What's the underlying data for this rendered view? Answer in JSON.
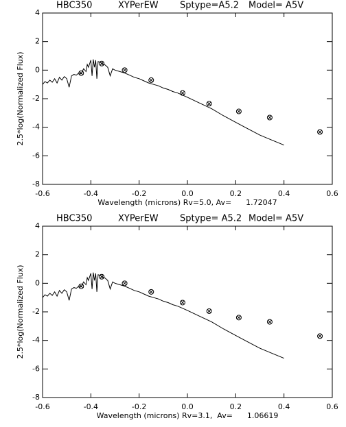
{
  "chart_data": [
    {
      "type": "line",
      "titles": [
        "HBC350",
        "XYPerEW",
        "Sptype=A5.2",
        "Model= A5V"
      ],
      "xlabel": "Wavelength (microns) Rv=5.0, Av=      1.72047",
      "ylabel": "2.5*log(Normalized Flux)",
      "xlim": [
        -0.6,
        0.6
      ],
      "ylim": [
        -8,
        4
      ],
      "xticks": [
        -0.6,
        -0.4,
        -0.2,
        {
          "value": 0,
          "label": "0.0"
        },
        0.2,
        0.4,
        0.6
      ],
      "yticks": [
        -8,
        -6,
        -4,
        -2,
        0,
        2,
        4
      ],
      "series": [
        {
          "style": "line",
          "color": "#000000",
          "x": [
            -0.6,
            -0.59,
            -0.58,
            -0.57,
            -0.56,
            -0.55,
            -0.54,
            -0.53,
            -0.52,
            -0.51,
            -0.5,
            -0.49,
            -0.48,
            -0.47,
            -0.46,
            -0.45,
            -0.44,
            -0.43,
            -0.42,
            -0.415,
            -0.41,
            -0.4,
            -0.395,
            -0.39,
            -0.385,
            -0.38,
            -0.375,
            -0.37,
            -0.36,
            -0.35,
            -0.34,
            -0.33,
            -0.32,
            -0.31,
            -0.3,
            -0.28,
            -0.26,
            -0.24,
            -0.22,
            -0.2,
            -0.18,
            -0.16,
            -0.14,
            -0.12,
            -0.1,
            -0.08,
            -0.06,
            -0.04,
            -0.02,
            0,
            0.05,
            0.1,
            0.15,
            0.2,
            0.25,
            0.3,
            0.35,
            0.4
          ],
          "values": [
            -1.0,
            -0.8,
            -0.9,
            -0.7,
            -0.85,
            -0.6,
            -0.9,
            -0.5,
            -0.7,
            -0.45,
            -0.6,
            -1.2,
            -0.4,
            -0.3,
            -0.35,
            -0.2,
            -0.25,
            0.1,
            -0.1,
            0.4,
            0.2,
            0.7,
            -0.4,
            0.75,
            0.2,
            0.7,
            -0.6,
            0.6,
            0.55,
            0.45,
            0.35,
            0.2,
            -0.4,
            0.1,
            0.0,
            -0.1,
            -0.2,
            -0.35,
            -0.5,
            -0.6,
            -0.75,
            -0.9,
            -1.0,
            -1.1,
            -1.25,
            -1.35,
            -1.5,
            -1.6,
            -1.75,
            -1.9,
            -2.3,
            -2.7,
            -3.2,
            -3.65,
            -4.1,
            -4.55,
            -4.9,
            -5.25
          ]
        },
        {
          "style": "marker",
          "color": "#000000",
          "x": [
            -0.44,
            -0.355,
            -0.26,
            -0.15,
            -0.02,
            0.09,
            0.213,
            0.341,
            0.549
          ],
          "values": [
            -0.21,
            0.46,
            0.0,
            -0.7,
            -1.6,
            -2.35,
            -2.89,
            -3.32,
            -4.33
          ]
        }
      ]
    },
    {
      "type": "line",
      "titles": [
        "HBC350",
        "XYPerEW",
        "Sptype= A5.2",
        "Model= A5V"
      ],
      "xlabel": "Wavelength (microns) Rv=3.1,  Av=      1.06619",
      "ylabel": "2.5*log(Normalized Flux)",
      "xlim": [
        -0.6,
        0.6
      ],
      "ylim": [
        -8,
        4
      ],
      "xticks": [
        -0.6,
        -0.4,
        -0.2,
        {
          "value": 0,
          "label": "0.0"
        },
        0.2,
        0.4,
        0.6
      ],
      "yticks": [
        -8,
        -6,
        -4,
        -2,
        0,
        2,
        4
      ],
      "series": [
        {
          "style": "line",
          "color": "#000000",
          "x": [
            -0.6,
            -0.59,
            -0.58,
            -0.57,
            -0.56,
            -0.55,
            -0.54,
            -0.53,
            -0.52,
            -0.51,
            -0.5,
            -0.49,
            -0.48,
            -0.47,
            -0.46,
            -0.45,
            -0.44,
            -0.43,
            -0.42,
            -0.415,
            -0.41,
            -0.4,
            -0.395,
            -0.39,
            -0.385,
            -0.38,
            -0.375,
            -0.37,
            -0.36,
            -0.35,
            -0.34,
            -0.33,
            -0.32,
            -0.31,
            -0.3,
            -0.28,
            -0.26,
            -0.24,
            -0.22,
            -0.2,
            -0.18,
            -0.16,
            -0.14,
            -0.12,
            -0.1,
            -0.08,
            -0.06,
            -0.04,
            -0.02,
            0,
            0.05,
            0.1,
            0.15,
            0.2,
            0.25,
            0.3,
            0.35,
            0.4
          ],
          "values": [
            -1.0,
            -0.8,
            -0.9,
            -0.7,
            -0.85,
            -0.6,
            -0.9,
            -0.5,
            -0.7,
            -0.45,
            -0.6,
            -1.2,
            -0.4,
            -0.3,
            -0.35,
            -0.2,
            -0.25,
            0.1,
            -0.1,
            0.4,
            0.2,
            0.7,
            -0.4,
            0.75,
            0.2,
            0.7,
            -0.6,
            0.6,
            0.55,
            0.45,
            0.35,
            0.2,
            -0.4,
            0.1,
            0.0,
            -0.1,
            -0.2,
            -0.35,
            -0.5,
            -0.6,
            -0.75,
            -0.9,
            -1.0,
            -1.1,
            -1.25,
            -1.35,
            -1.5,
            -1.6,
            -1.75,
            -1.9,
            -2.3,
            -2.7,
            -3.2,
            -3.65,
            -4.1,
            -4.55,
            -4.9,
            -5.25
          ]
        },
        {
          "style": "marker",
          "color": "#000000",
          "x": [
            -0.44,
            -0.355,
            -0.26,
            -0.15,
            -0.02,
            0.09,
            0.213,
            0.341,
            0.549
          ],
          "values": [
            -0.21,
            0.46,
            0.0,
            -0.6,
            -1.35,
            -1.95,
            -2.4,
            -2.7,
            -3.7
          ]
        }
      ]
    }
  ]
}
